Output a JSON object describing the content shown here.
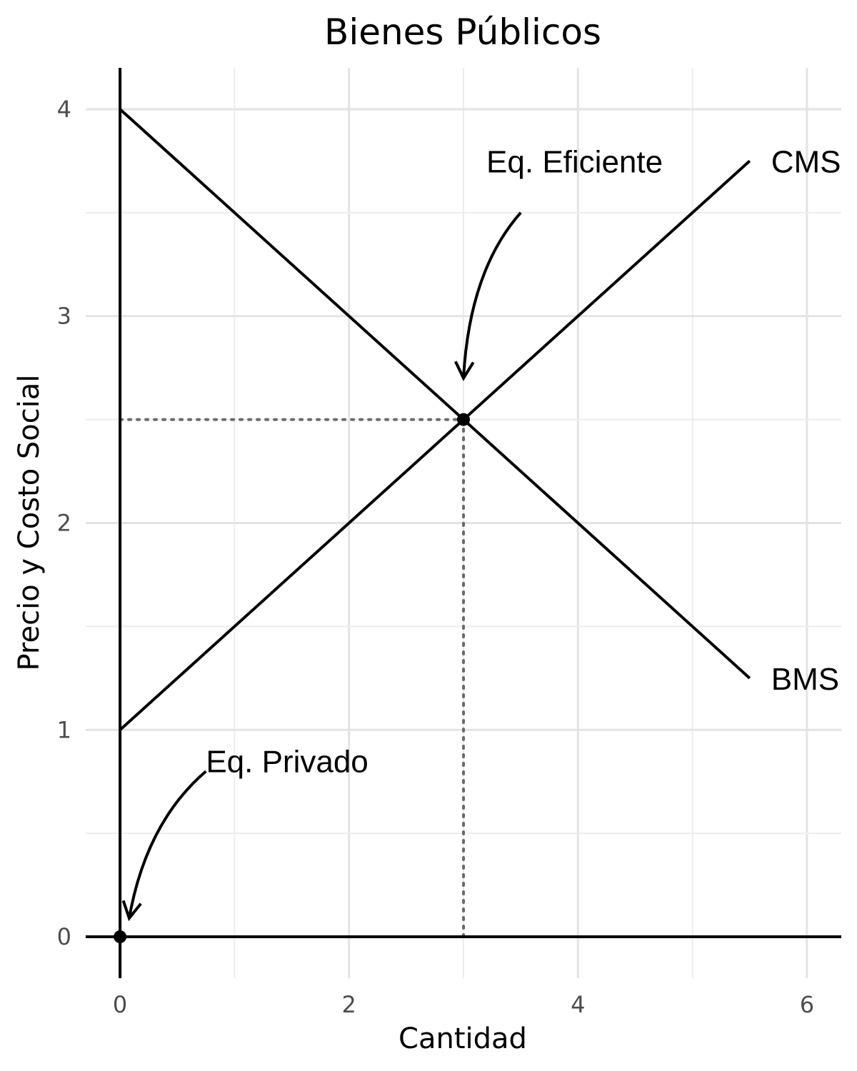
{
  "chart_data": {
    "type": "line",
    "title": "Bienes Públicos",
    "xlabel": "Cantidad",
    "ylabel": "Precio y Costo Social",
    "xlim": [
      -0.3,
      6.3
    ],
    "ylim": [
      -0.2,
      4.2
    ],
    "x_ticks": [
      0,
      2,
      4,
      6
    ],
    "y_ticks": [
      0,
      1,
      2,
      3,
      4
    ],
    "x_tick_labels": [
      "0",
      "2",
      "4",
      "6"
    ],
    "y_tick_labels": [
      "0",
      "1",
      "2",
      "3",
      "4"
    ],
    "grid": true,
    "series": [
      {
        "name": "CMS",
        "x": [
          0,
          5.5
        ],
        "y": [
          1,
          3.75
        ]
      },
      {
        "name": "BMS",
        "x": [
          0,
          5.5
        ],
        "y": [
          4,
          1.25
        ]
      }
    ],
    "points": [
      {
        "x": 3,
        "y": 2.5
      },
      {
        "x": 0,
        "y": 0
      }
    ],
    "reference_lines": [
      {
        "x": [
          0,
          3
        ],
        "y": [
          2.5,
          2.5
        ]
      },
      {
        "x": [
          3,
          3
        ],
        "y": [
          0,
          2.5
        ]
      }
    ],
    "annotations": [
      {
        "text": "Eq. Eficiente",
        "x": 3.2,
        "y": 3.75,
        "arrow_from": [
          3.5,
          3.5
        ],
        "arrow_to": [
          3,
          2.7
        ]
      },
      {
        "text": "Eq. Privado",
        "x": 0.75,
        "y": 0.85,
        "arrow_from": [
          0.75,
          0.8
        ],
        "arrow_to": [
          0.08,
          0.09
        ]
      }
    ],
    "line_color": "#000000",
    "reference_color": "#6b6b6b"
  }
}
